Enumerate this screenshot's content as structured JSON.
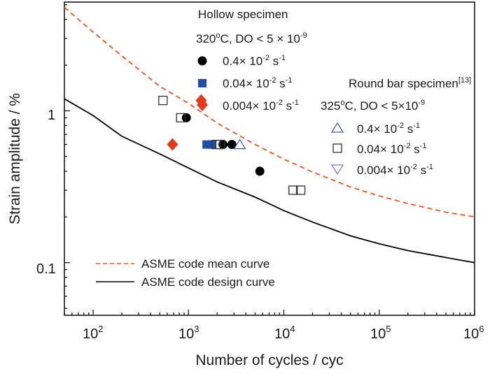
{
  "chart_data": {
    "type": "scatter",
    "x_scale": "log",
    "y_scale": "log",
    "xlim": [
      50,
      1000000
    ],
    "ylim": [
      0.045,
      5.2
    ],
    "xlabel": "Number of cycles / cyc",
    "ylabel": "Strain amplitude / %",
    "x_ticks": [
      {
        "value": 100,
        "base": "10",
        "exp": "2"
      },
      {
        "value": 1000,
        "base": "10",
        "exp": "3"
      },
      {
        "value": 10000,
        "base": "10",
        "exp": "4"
      },
      {
        "value": 100000,
        "base": "10",
        "exp": "5"
      },
      {
        "value": 1000000,
        "base": "10",
        "exp": "6"
      }
    ],
    "y_ticks": [
      {
        "value": 0.1,
        "label": "0.1"
      },
      {
        "value": 1,
        "label": "1"
      }
    ],
    "hollow_group": {
      "title": "Hollow specimen",
      "cond_prefix": "320",
      "cond_sup": "o",
      "cond_mid": "C, DO < 5 × 10",
      "cond_exp": "-9"
    },
    "round_group": {
      "title": "Round bar specimen",
      "title_ref": "[13]",
      "cond_prefix": "325",
      "cond_sup": "o",
      "cond_mid": "C, DO < 5×10",
      "cond_exp": "-9"
    },
    "series": [
      {
        "name": "hollow-0.4",
        "rate": "0.4",
        "color": "#000000",
        "marker": "circle",
        "points": [
          [
            950,
            0.9
          ],
          [
            2300,
            0.6
          ],
          [
            2850,
            0.6
          ],
          [
            5600,
            0.4
          ]
        ]
      },
      {
        "name": "hollow-0.04",
        "rate": "0.04",
        "color": "#1f4fa8",
        "marker": "square",
        "points": [
          [
            1550,
            0.6
          ],
          [
            1750,
            0.6
          ]
        ]
      },
      {
        "name": "hollow-0.004",
        "rate": "0.004",
        "color": "#e8381a",
        "marker": "diamond",
        "points": [
          [
            680,
            0.6
          ],
          [
            1360,
            1.17
          ]
        ]
      },
      {
        "name": "round-0.4",
        "rate": "0.4",
        "color": "#4a5fb0",
        "marker": "triangle-open",
        "points": [
          [
            3450,
            0.6
          ]
        ]
      },
      {
        "name": "round-0.04",
        "rate": "0.04",
        "color": "#333333",
        "marker": "square-open",
        "points": [
          [
            540,
            1.17
          ],
          [
            830,
            0.9
          ],
          [
            1950,
            0.6
          ],
          [
            2150,
            0.6
          ],
          [
            12500,
            0.3
          ],
          [
            15000,
            0.3
          ]
        ]
      },
      {
        "name": "round-0.004",
        "rate": "0.004",
        "color": "#a070c0",
        "marker": "triangle-down-open",
        "points": []
      }
    ],
    "rate_unit": {
      "times": "× 10",
      "exp": "-2",
      "unit": " s",
      "unit_exp": "-1"
    },
    "curves": [
      {
        "name": "ASME code mean curve",
        "style": "dashed",
        "color": "#e8552a",
        "points": [
          [
            50,
            4.8
          ],
          [
            100,
            3.3
          ],
          [
            200,
            2.3
          ],
          [
            500,
            1.45
          ],
          [
            1000,
            1.12
          ],
          [
            2000,
            0.83
          ],
          [
            5000,
            0.6
          ],
          [
            10000,
            0.48
          ],
          [
            20000,
            0.395
          ],
          [
            50000,
            0.315
          ],
          [
            100000,
            0.275
          ],
          [
            200000,
            0.245
          ],
          [
            500000,
            0.215
          ],
          [
            1000000,
            0.2
          ]
        ]
      },
      {
        "name": "ASME code design curve",
        "style": "solid",
        "color": "#000000",
        "points": [
          [
            50,
            1.2
          ],
          [
            100,
            0.93
          ],
          [
            200,
            0.68
          ],
          [
            500,
            0.52
          ],
          [
            1000,
            0.42
          ],
          [
            2000,
            0.34
          ],
          [
            5000,
            0.27
          ],
          [
            10000,
            0.22
          ],
          [
            20000,
            0.185
          ],
          [
            50000,
            0.15
          ],
          [
            100000,
            0.133
          ],
          [
            200000,
            0.12
          ],
          [
            500000,
            0.108
          ],
          [
            1000000,
            0.1
          ]
        ]
      }
    ]
  }
}
